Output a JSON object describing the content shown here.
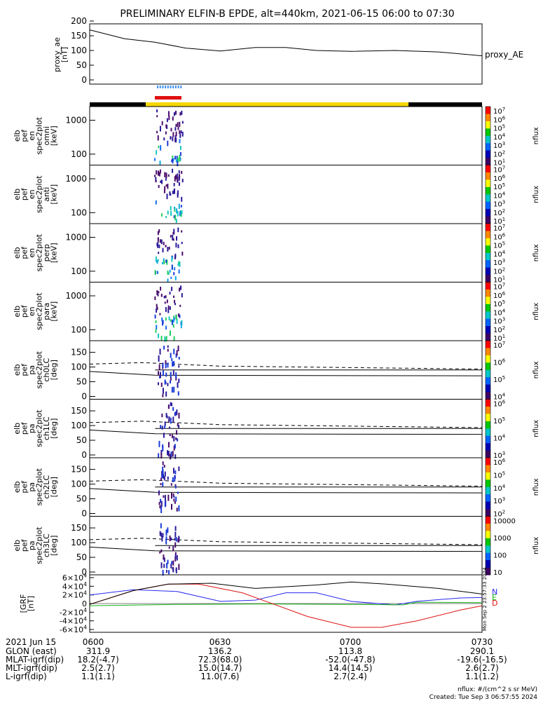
{
  "title": "PRELIMINARY ELFIN-B EPDE, alt=440km, 2021-06-15 06:00 to 07:30",
  "ae_panel": {
    "ylabel": "proxy_ae\n[nT]",
    "series_label": "proxy_AE",
    "yticks": [
      "200",
      "150",
      "100",
      "50",
      "0"
    ]
  },
  "spec_panels": [
    {
      "ylabel": "elb\npef\nen\nspec2plot\nomni\n[keV]",
      "cbar_ticks": [
        "10^7",
        "10^6",
        "10^5",
        "10^4",
        "10^3",
        "10^2",
        "10^1"
      ],
      "cbar_label": "nflux"
    },
    {
      "ylabel": "elb\npef\nen\nspec2plot\nanti\n[keV]",
      "cbar_ticks": [
        "10^7",
        "10^6",
        "10^5",
        "10^4",
        "10^3",
        "10^2",
        "10^1"
      ],
      "cbar_label": "nflux"
    },
    {
      "ylabel": "elb\npef\nen\nspec2plot\nperp\n[keV]",
      "cbar_ticks": [
        "10^7",
        "10^6",
        "10^5",
        "10^4",
        "10^3",
        "10^2",
        "10^1"
      ],
      "cbar_label": "nflux"
    },
    {
      "ylabel": "elb\npef\nen\nspec2plot\npara\n[keV]",
      "cbar_ticks": [
        "10^7",
        "10^6",
        "10^5",
        "10^4",
        "10^3",
        "10^2",
        "10^1"
      ],
      "cbar_label": "nflux"
    }
  ],
  "pa_panels": [
    {
      "ylabel": "elb\npef\npa\nspec2plot\nch0LC\n[deg]",
      "cbar_ticks": [
        "10^7",
        "10^6",
        "10^5",
        "10^4"
      ],
      "cbar_label": "nflux"
    },
    {
      "ylabel": "elb\npef\npa\nspec2plot\nch1LC\n[deg]",
      "cbar_ticks": [
        "10^6",
        "10^5",
        "10^4",
        "10^3"
      ],
      "cbar_label": "nflux"
    },
    {
      "ylabel": "elb\npef\npa\nspec2plot\nch2LC\n[deg]",
      "cbar_ticks": [
        "10^6",
        "10^5",
        "10^4",
        "10^3",
        "10^2"
      ],
      "cbar_label": "nflux"
    },
    {
      "ylabel": "elb\npef\npa\nspec2plot\nch3LC\n[deg]",
      "cbar_ticks": [
        "10000",
        "1000",
        "100",
        "10"
      ],
      "cbar_label": "nflux"
    }
  ],
  "en_yticks": [
    "1000",
    "100"
  ],
  "pa_yticks": [
    "150",
    "100",
    "50",
    "0"
  ],
  "bfield_panel": {
    "ylabel": "[GRF\n[nT]",
    "yticks": [
      "6x10^4",
      "4x10^4",
      "2x10^4",
      "0",
      "-2x10^4",
      "-4x10^4",
      "-6x10^4"
    ],
    "legend": [
      {
        "label": "N",
        "color": "#2a2af0"
      },
      {
        "label": "E",
        "color": "#18b418"
      },
      {
        "label": "D",
        "color": "#e01010"
      }
    ],
    "vertical_stamp": "Mon Sep  2 23:57:33 2024"
  },
  "ephemeris": {
    "date_label": "2021 Jun 15",
    "row_labels": [
      "GLON (east)",
      "MLAT-igrf(dip)",
      "MLT-igrf(dip)",
      "L-igrf(dip)"
    ],
    "ticks": [
      "0600",
      "0630",
      "0700",
      "0730"
    ],
    "values": [
      [
        "311.9",
        "136.2",
        "113.8",
        "290.1"
      ],
      [
        "18.2(-4.7)",
        "72.3(68.0)",
        "-52.0(-47.8)",
        "-19.6(-16.5)"
      ],
      [
        "2.5(2.7)",
        "15.0(14.7)",
        "14.4(14.5)",
        "2.6(2.7)"
      ],
      [
        "1.1(1.1)",
        "11.0(7.6)",
        "2.7(2.4)",
        "1.1(1.2)"
      ]
    ]
  },
  "footer": {
    "units": "nflux: #/(cm^2 s sr MeV)",
    "created": "Created: Tue Sep  3 06:57:55 2024"
  },
  "colors": {
    "sunlit_bar": "#f5d800",
    "shadow_bar": "#000000",
    "science_zone": "#e01010",
    "fgm_dots": "#3a8ef0"
  },
  "chart_data": {
    "type": "line",
    "title": "PRELIMINARY ELFIN-B EPDE, alt=440km, 2021-06-15 06:00 to 07:30",
    "x_range": [
      "06:00",
      "07:30"
    ],
    "proxy_ae": {
      "ylim": [
        0,
        200
      ],
      "x_min": [
        0,
        8,
        15,
        22,
        30,
        38,
        45,
        52,
        60,
        70,
        80,
        90
      ],
      "values": [
        170,
        140,
        128,
        108,
        98,
        110,
        110,
        100,
        97,
        100,
        95,
        82
      ]
    },
    "bfield": {
      "ylim": [
        -60000,
        60000
      ],
      "series": [
        {
          "name": "N",
          "x_min": [
            0,
            10,
            20,
            30,
            38,
            45,
            52,
            60,
            70,
            75,
            85,
            90
          ],
          "values": [
            20000,
            32000,
            28000,
            5000,
            8000,
            25000,
            25000,
            5000,
            -3000,
            5000,
            13000,
            14000
          ]
        },
        {
          "name": "E",
          "x_min": [
            0,
            20,
            40,
            60,
            72,
            75,
            90
          ],
          "values": [
            -5000,
            -2000,
            -1000,
            -2000,
            -3000,
            3000,
            2000
          ]
        },
        {
          "name": "D",
          "x_min": [
            0,
            10,
            18,
            25,
            35,
            50,
            60,
            67,
            75,
            85,
            90
          ],
          "values": [
            -2000,
            30000,
            45000,
            45000,
            25000,
            -30000,
            -55000,
            -55000,
            -40000,
            -15000,
            -5000
          ]
        },
        {
          "name": "total",
          "x_min": [
            0,
            10,
            18,
            28,
            38,
            52,
            60,
            68,
            80,
            90
          ],
          "values": [
            -2000,
            30000,
            45000,
            47000,
            35000,
            43000,
            50000,
            45000,
            35000,
            22000
          ]
        }
      ]
    }
  }
}
